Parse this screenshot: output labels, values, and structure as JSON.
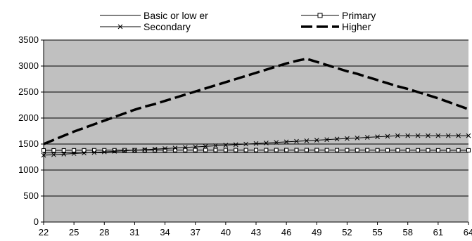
{
  "chart_data": {
    "type": "line",
    "title": "",
    "xlabel": "",
    "ylabel": "",
    "x": [
      22,
      23,
      24,
      25,
      26,
      27,
      28,
      29,
      30,
      31,
      32,
      33,
      34,
      35,
      36,
      37,
      38,
      39,
      40,
      41,
      42,
      43,
      44,
      45,
      46,
      47,
      48,
      49,
      50,
      51,
      52,
      53,
      54,
      55,
      56,
      57,
      58,
      59,
      60,
      61,
      62,
      63,
      64
    ],
    "x_ticks": [
      "22",
      "25",
      "28",
      "31",
      "34",
      "37",
      "40",
      "43",
      "46",
      "49",
      "52",
      "55",
      "58",
      "61",
      "64"
    ],
    "y_ticks": [
      "0",
      "500",
      "1000",
      "1500",
      "2000",
      "2500",
      "3000",
      "3500"
    ],
    "ylim": [
      0,
      3500
    ],
    "grid": "horizontal",
    "plot_background": "#c0c0c0",
    "legend_position": "top",
    "series": [
      {
        "name": "Basic or low er",
        "style": "solid-thin",
        "color": "#000000",
        "values": [
          1330,
          1330,
          1331,
          1331,
          1332,
          1332,
          1333,
          1333,
          1334,
          1334,
          1335,
          1335,
          1336,
          1336,
          1336,
          1337,
          1337,
          1337,
          1338,
          1338,
          1338,
          1338,
          1339,
          1339,
          1339,
          1339,
          1340,
          1340,
          1340,
          1340,
          1340,
          1340,
          1341,
          1341,
          1341,
          1341,
          1341,
          1341,
          1342,
          1342,
          1342,
          1342,
          1342
        ]
      },
      {
        "name": "Primary",
        "style": "solid-square-markers",
        "color": "#000000",
        "values": [
          1378,
          1379,
          1379,
          1380,
          1380,
          1381,
          1381,
          1381,
          1382,
          1382,
          1382,
          1383,
          1383,
          1383,
          1383,
          1384,
          1384,
          1384,
          1384,
          1384,
          1384,
          1384,
          1384,
          1384,
          1384,
          1384,
          1384,
          1384,
          1383,
          1383,
          1383,
          1383,
          1383,
          1382,
          1382,
          1382,
          1381,
          1381,
          1381,
          1380,
          1380,
          1380,
          1380
        ]
      },
      {
        "name": "Secondary",
        "style": "solid-x-markers",
        "color": "#000000",
        "values": [
          1285,
          1295,
          1306,
          1317,
          1327,
          1338,
          1349,
          1360,
          1370,
          1381,
          1392,
          1402,
          1413,
          1424,
          1435,
          1445,
          1456,
          1467,
          1478,
          1488,
          1499,
          1510,
          1520,
          1531,
          1542,
          1553,
          1563,
          1574,
          1585,
          1596,
          1606,
          1617,
          1628,
          1638,
          1649,
          1660,
          1660,
          1660,
          1660,
          1660,
          1660,
          1660,
          1660
        ]
      },
      {
        "name": "Higher",
        "style": "thick-dashed",
        "color": "#000000",
        "values": [
          1500,
          1580,
          1660,
          1740,
          1810,
          1880,
          1950,
          2020,
          2090,
          2160,
          2220,
          2270,
          2330,
          2390,
          2450,
          2510,
          2570,
          2630,
          2690,
          2750,
          2810,
          2870,
          2930,
          2990,
          3050,
          3100,
          3140,
          3080,
          3020,
          2960,
          2900,
          2850,
          2790,
          2730,
          2670,
          2610,
          2560,
          2500,
          2440,
          2380,
          2310,
          2240,
          2170
        ]
      }
    ]
  }
}
